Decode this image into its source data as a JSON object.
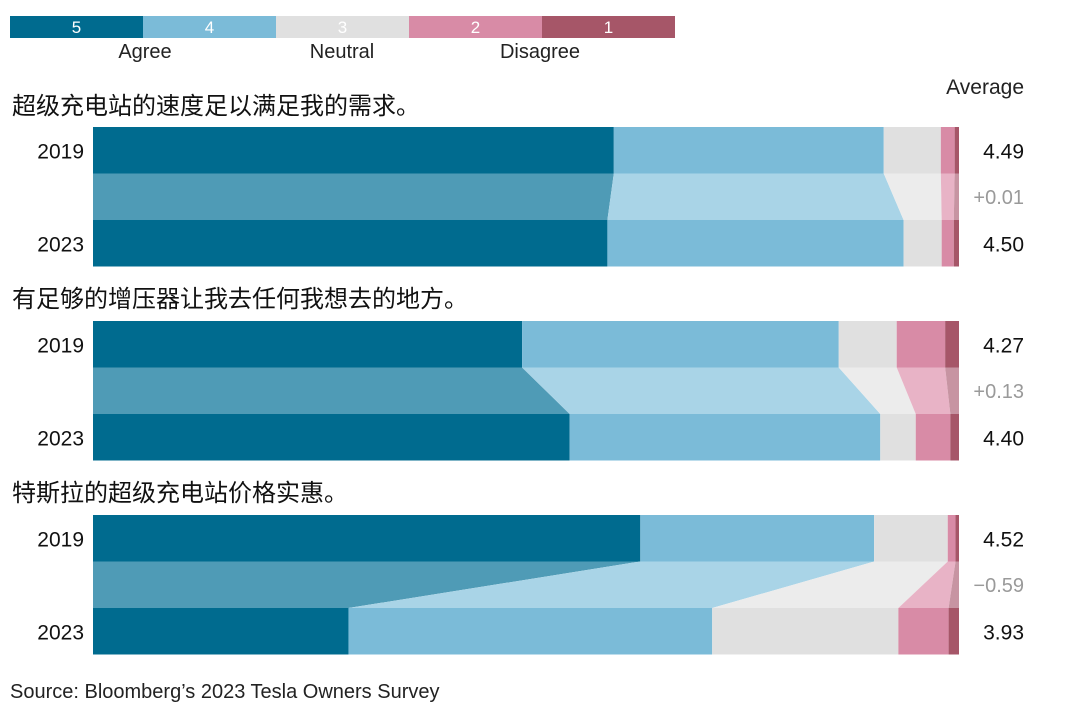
{
  "colors": {
    "5": "#006b8f",
    "4": "#7bbbd8",
    "3": "#e0e0e0",
    "2": "#d88ba6",
    "1": "#a65668",
    "band": {
      "5": "#4f9bb6",
      "4": "#a9d4e7",
      "3": "#ececec",
      "2": "#e8b3c6",
      "1": "#c794a2"
    }
  },
  "legend": {
    "scores": [
      "5",
      "4",
      "3",
      "2",
      "1"
    ],
    "labels": {
      "agree": "Agree",
      "neutral": "Neutral",
      "disagree": "Disagree"
    }
  },
  "average_header": "Average",
  "source": "Source: Bloomberg’s 2023 Tesla Owners Survey",
  "chart_data": {
    "type": "bar",
    "stacked": true,
    "unit": "share of respondents (%)",
    "score_order": [
      "5",
      "4",
      "3",
      "2",
      "1"
    ],
    "questions": [
      {
        "title": "超级充电站的速度足以满足我的需求。",
        "rows": [
          {
            "year": "2019",
            "shares": [
              60.2,
              31.2,
              6.6,
              1.6,
              0.5
            ],
            "average": "4.49"
          },
          {
            "year": "2023",
            "shares": [
              59.4,
              34.2,
              4.4,
              1.4,
              0.6
            ],
            "average": "4.50"
          }
        ],
        "change": "+0.01"
      },
      {
        "title": "有足够的增压器让我去任何我想去的地方。",
        "rows": [
          {
            "year": "2019",
            "shares": [
              49.6,
              36.6,
              6.7,
              5.6,
              1.6
            ],
            "average": "4.27"
          },
          {
            "year": "2023",
            "shares": [
              55.1,
              35.9,
              4.1,
              4.0,
              1.0
            ],
            "average": "4.40"
          }
        ],
        "change": "+0.13"
      },
      {
        "title": "特斯拉的超级充电站价格实惠。",
        "rows": [
          {
            "year": "2019",
            "shares": [
              63.2,
              27.0,
              8.5,
              0.9,
              0.4
            ],
            "average": "4.52"
          },
          {
            "year": "2023",
            "shares": [
              29.5,
              42.0,
              21.5,
              5.8,
              1.2
            ],
            "average": "3.93"
          }
        ],
        "change": "−0.59"
      }
    ]
  }
}
